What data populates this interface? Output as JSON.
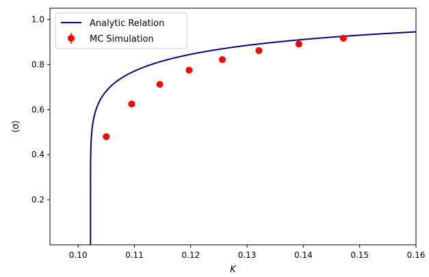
{
  "chart_data": {
    "type": "scatter",
    "title": "",
    "xlabel": "K",
    "ylabel": "⟨σ⟩",
    "xlim": [
      0.095,
      0.16
    ],
    "ylim": [
      0.0,
      1.05
    ],
    "xticks": [
      0.1,
      0.11,
      0.12,
      0.13,
      0.14,
      0.15,
      0.16
    ],
    "xtick_labels": [
      "0.10",
      "0.11",
      "0.12",
      "0.13",
      "0.14",
      "0.15",
      "0.16"
    ],
    "yticks": [
      0.2,
      0.4,
      0.6,
      0.8,
      1.0
    ],
    "ytick_labels": [
      "0.2",
      "0.4",
      "0.6",
      "0.8",
      "1.0"
    ],
    "grid": false,
    "legend_position": "top-left",
    "series": [
      {
        "name": "Analytic Relation",
        "kind": "line",
        "color": "#00007f",
        "critical_K": 0.1022,
        "x": [
          0.1022,
          0.1025,
          0.103,
          0.104,
          0.105,
          0.107,
          0.11,
          0.115,
          0.12,
          0.125,
          0.13,
          0.135,
          0.14,
          0.145,
          0.15,
          0.155,
          0.16
        ],
        "y": [
          0.0,
          0.3,
          0.37,
          0.45,
          0.51,
          0.58,
          0.65,
          0.725,
          0.785,
          0.83,
          0.86,
          0.885,
          0.905,
          0.92,
          0.93,
          0.939,
          0.945
        ]
      },
      {
        "name": "MC Simulation",
        "kind": "errorbar",
        "color": "#ff0000",
        "x": [
          0.105,
          0.1095,
          0.1145,
          0.1197,
          0.1256,
          0.1321,
          0.1392,
          0.1471
        ],
        "y": [
          0.48,
          0.625,
          0.712,
          0.775,
          0.822,
          0.862,
          0.891,
          0.917
        ]
      }
    ]
  }
}
